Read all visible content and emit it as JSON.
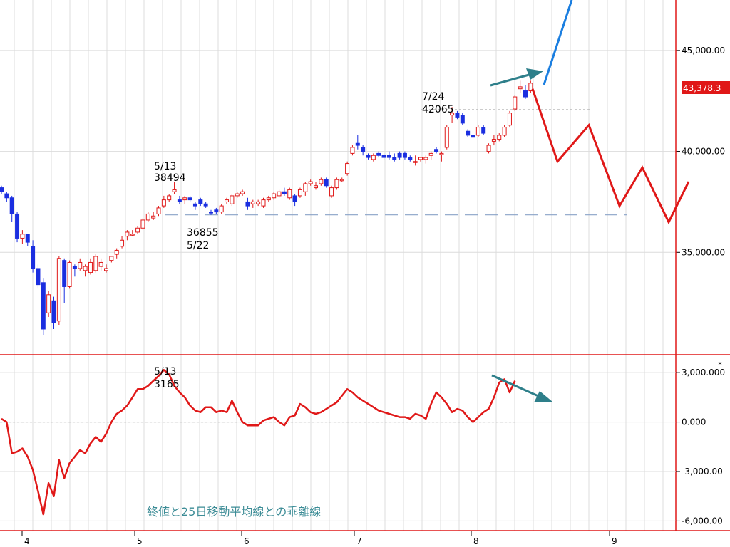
{
  "chart_data": [
    {
      "type": "candlestick",
      "ylim": [
        30000,
        47500
      ],
      "y_ticks": [
        "45,000.00",
        "40,000.00",
        "35,000.00"
      ],
      "y_tick_values": [
        45000,
        40000,
        35000
      ],
      "x_ticks": [
        "4",
        "5",
        "6",
        "7",
        "8",
        "9"
      ],
      "last_price_label": "43,378.3",
      "annotations": [
        {
          "label_top": "5/13",
          "label_bottom": "38494"
        },
        {
          "label_top": "36855",
          "label_bottom": "5/22"
        },
        {
          "label_top": "7/24",
          "label_bottom": "42065"
        }
      ],
      "reference_lines": [
        36855,
        42065
      ],
      "candles": [
        [
          38200,
          38300,
          37900,
          38000
        ],
        [
          37900,
          38000,
          37500,
          37700
        ],
        [
          37700,
          37800,
          36500,
          36900
        ],
        [
          36900,
          37000,
          35500,
          35700
        ],
        [
          35700,
          36100,
          35400,
          35900
        ],
        [
          35900,
          35900,
          35300,
          35500
        ],
        [
          35300,
          35600,
          34000,
          34200
        ],
        [
          34200,
          34400,
          33200,
          33400
        ],
        [
          33500,
          33700,
          30900,
          31200
        ],
        [
          32000,
          33100,
          31800,
          32900
        ],
        [
          32600,
          32800,
          31200,
          31500
        ],
        [
          31600,
          34800,
          31400,
          34700
        ],
        [
          34600,
          34700,
          32500,
          33300
        ],
        [
          33300,
          34600,
          33200,
          34500
        ],
        [
          34300,
          34400,
          33800,
          34200
        ],
        [
          34200,
          34700,
          34100,
          34500
        ],
        [
          34100,
          34400,
          33800,
          34300
        ],
        [
          34000,
          34700,
          33900,
          34500
        ],
        [
          34100,
          34900,
          34000,
          34800
        ],
        [
          34300,
          34700,
          34100,
          34500
        ],
        [
          34100,
          34400,
          34000,
          34200
        ],
        [
          34600,
          34800,
          34500,
          34800
        ],
        [
          34900,
          35200,
          34700,
          35100
        ],
        [
          35300,
          35800,
          35200,
          35600
        ],
        [
          35800,
          36100,
          35600,
          36000
        ],
        [
          35900,
          36100,
          35800,
          35900
        ],
        [
          36000,
          36300,
          35900,
          36200
        ],
        [
          36200,
          36700,
          36100,
          36600
        ],
        [
          36600,
          37000,
          36500,
          36900
        ],
        [
          36700,
          37000,
          36600,
          36800
        ],
        [
          36900,
          37300,
          36800,
          37200
        ],
        [
          37300,
          37800,
          37200,
          37600
        ],
        [
          37600,
          37900,
          37500,
          37800
        ],
        [
          38000,
          38500,
          37900,
          38100
        ],
        [
          37600,
          37800,
          37400,
          37500
        ],
        [
          37600,
          37800,
          37400,
          37700
        ],
        [
          37700,
          37800,
          37500,
          37600
        ],
        [
          37400,
          37500,
          37100,
          37300
        ],
        [
          37600,
          37700,
          37300,
          37400
        ],
        [
          37400,
          37500,
          37200,
          37300
        ],
        [
          37000,
          37100,
          36855,
          36950
        ],
        [
          37100,
          37200,
          36900,
          37000
        ],
        [
          37000,
          37400,
          36900,
          37300
        ],
        [
          37500,
          37700,
          37400,
          37600
        ],
        [
          37400,
          37900,
          37300,
          37800
        ],
        [
          37800,
          38000,
          37700,
          37900
        ],
        [
          37900,
          38100,
          37800,
          38000
        ],
        [
          37500,
          37700,
          37100,
          37300
        ],
        [
          37400,
          37600,
          37200,
          37500
        ],
        [
          37400,
          37600,
          37300,
          37500
        ],
        [
          37300,
          37700,
          37200,
          37600
        ],
        [
          37600,
          37800,
          37500,
          37700
        ],
        [
          37700,
          38000,
          37600,
          37900
        ],
        [
          37800,
          38100,
          37700,
          38000
        ],
        [
          38000,
          38200,
          37800,
          37900
        ],
        [
          37700,
          38200,
          37600,
          38100
        ],
        [
          37800,
          37900,
          37300,
          37500
        ],
        [
          37800,
          38200,
          37700,
          38100
        ],
        [
          38000,
          38500,
          37800,
          38400
        ],
        [
          38400,
          38600,
          38300,
          38500
        ],
        [
          38200,
          38500,
          38100,
          38300
        ],
        [
          38400,
          38700,
          38300,
          38600
        ],
        [
          38600,
          38700,
          38200,
          38300
        ],
        [
          37800,
          38300,
          37700,
          38200
        ],
        [
          38200,
          38700,
          38100,
          38600
        ],
        [
          38600,
          38700,
          38500,
          38600
        ],
        [
          38900,
          39500,
          38800,
          39400
        ],
        [
          39900,
          40300,
          39800,
          40200
        ],
        [
          40400,
          40800,
          40100,
          40300
        ],
        [
          40200,
          40300,
          39800,
          40000
        ],
        [
          39800,
          39900,
          39600,
          39700
        ],
        [
          39600,
          39900,
          39500,
          39800
        ],
        [
          39900,
          40000,
          39700,
          39800
        ],
        [
          39800,
          39900,
          39600,
          39700
        ],
        [
          39800,
          40000,
          39600,
          39700
        ],
        [
          39700,
          39900,
          39500,
          39600
        ],
        [
          39900,
          40000,
          39600,
          39700
        ],
        [
          39900,
          40000,
          39600,
          39700
        ],
        [
          39700,
          39800,
          39500,
          39600
        ],
        [
          39500,
          39800,
          39300,
          39500
        ],
        [
          39600,
          39700,
          39500,
          39700
        ],
        [
          39600,
          39800,
          39400,
          39700
        ],
        [
          39800,
          40000,
          39600,
          39900
        ],
        [
          40100,
          40200,
          39900,
          40000
        ],
        [
          39900,
          40000,
          39500,
          39900
        ],
        [
          40200,
          41300,
          40100,
          41200
        ],
        [
          41800,
          42200,
          41400,
          41900
        ],
        [
          41900,
          42000,
          41600,
          41700
        ],
        [
          41800,
          41900,
          41300,
          41400
        ],
        [
          41000,
          41100,
          40700,
          40800
        ],
        [
          40800,
          40900,
          40600,
          40700
        ],
        [
          40800,
          41300,
          40700,
          41200
        ],
        [
          41200,
          41300,
          40800,
          40900
        ],
        [
          40000,
          40400,
          39900,
          40300
        ],
        [
          40500,
          40800,
          40300,
          40600
        ],
        [
          40600,
          40900,
          40500,
          40800
        ],
        [
          40800,
          41300,
          40700,
          41200
        ],
        [
          41300,
          42000,
          41200,
          41900
        ],
        [
          42100,
          42800,
          42000,
          42700
        ],
        [
          43100,
          43500,
          42900,
          43200
        ],
        [
          43000,
          43300,
          42600,
          42700
        ],
        [
          43000,
          43500,
          42900,
          43378
        ]
      ],
      "forecast_paths": [
        {
          "color": "#1a7ee0",
          "points": [
            [
              0,
              43300
            ],
            [
              1,
              47500
            ]
          ]
        },
        {
          "color": "#e01818",
          "points": [
            [
              0,
              43100
            ],
            [
              1,
              39500
            ],
            [
              2,
              41300
            ],
            [
              3,
              37300
            ],
            [
              4,
              39200
            ],
            [
              5,
              36500
            ],
            [
              6,
              38500
            ]
          ]
        }
      ],
      "trend_arrows": [
        {
          "color": "#2e7f8a",
          "direction": "up"
        }
      ]
    },
    {
      "type": "line",
      "ylim": [
        -6500,
        4000
      ],
      "y_ticks": [
        "3,000.000",
        "0.000",
        "-3,000.00",
        "-6,000.00"
      ],
      "y_tick_values": [
        3000,
        0,
        -3000,
        -6000
      ],
      "zero_line": 0,
      "annotation": {
        "label_top": "5/13",
        "label_bottom": "3165"
      },
      "caption": "終値と25日移動平均線との乖離線",
      "series": [
        {
          "color": "#e01818",
          "values": [
            200,
            0,
            -1900,
            -1800,
            -1600,
            -2100,
            -2900,
            -4200,
            -5600,
            -3700,
            -4500,
            -2300,
            -3400,
            -2500,
            -2100,
            -1700,
            -1900,
            -1300,
            -900,
            -1200,
            -700,
            0,
            500,
            700,
            1000,
            1500,
            2000,
            2000,
            2200,
            2500,
            2800,
            3165,
            2900,
            2200,
            1800,
            1500,
            1000,
            700,
            600,
            900,
            900,
            600,
            700,
            600,
            1300,
            600,
            0,
            -200,
            -200,
            -200,
            100,
            200,
            300,
            0,
            -200,
            300,
            400,
            1100,
            900,
            600,
            500,
            600,
            800,
            1000,
            1200,
            1600,
            2000,
            1800,
            1500,
            1300,
            1100,
            900,
            700,
            600,
            500,
            400,
            300,
            300,
            200,
            500,
            400,
            200,
            1100,
            1800,
            1500,
            1100,
            600,
            800,
            700,
            300,
            0,
            300,
            600,
            800,
            1500,
            2400,
            2600,
            1800,
            2500
          ]
        }
      ]
    }
  ],
  "close_button": {
    "glyph": "×"
  }
}
